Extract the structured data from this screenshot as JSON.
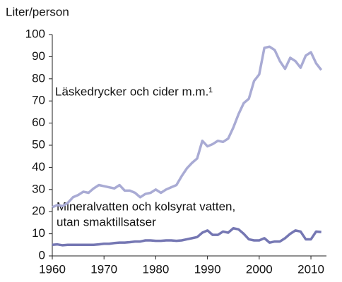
{
  "chart_data": {
    "type": "line",
    "ylabel": "Liter/person",
    "x": [
      1960,
      1961,
      1962,
      1963,
      1964,
      1965,
      1966,
      1967,
      1968,
      1969,
      1970,
      1971,
      1972,
      1973,
      1974,
      1975,
      1976,
      1977,
      1978,
      1979,
      1980,
      1981,
      1982,
      1983,
      1984,
      1985,
      1986,
      1987,
      1988,
      1989,
      1990,
      1991,
      1992,
      1993,
      1994,
      1995,
      1996,
      1997,
      1998,
      1999,
      2000,
      2001,
      2002,
      2003,
      2004,
      2005,
      2006,
      2007,
      2008,
      2009,
      2010,
      2011,
      2012
    ],
    "series": [
      {
        "name": "Läskedrycker och cider m.m.¹",
        "color": "#a9abd4",
        "values": [
          22,
          23,
          22.5,
          24,
          26.5,
          27.5,
          29,
          28.5,
          30.5,
          32,
          31.5,
          31,
          30.5,
          32,
          29.5,
          29.5,
          28.5,
          26.5,
          28,
          28.5,
          30,
          28.5,
          30,
          31,
          32,
          36,
          39.5,
          42,
          44,
          52,
          49.5,
          50.5,
          52,
          51.5,
          53,
          58,
          64,
          69,
          71,
          79,
          82,
          94,
          94.5,
          93,
          88,
          84.5,
          89.5,
          88,
          85,
          90.5,
          92,
          87,
          84
        ]
      },
      {
        "name": "Mineralvatten och kolsyrat vatten, utan smaktillsatser",
        "color": "#7577b3",
        "values": [
          5,
          5.2,
          4.8,
          5,
          5,
          5,
          5,
          5,
          5,
          5.2,
          5.5,
          5.5,
          5.8,
          6,
          6,
          6.2,
          6.5,
          6.5,
          7,
          7,
          6.8,
          6.8,
          7,
          7,
          6.8,
          7,
          7.5,
          8,
          8.5,
          10.5,
          11.5,
          9.5,
          9.5,
          11,
          10.5,
          12.5,
          12,
          10,
          7.5,
          7,
          7,
          8,
          6,
          6.5,
          6.5,
          8,
          10,
          11.5,
          11,
          7.5,
          7.5,
          11,
          10.8
        ]
      }
    ],
    "annotations": [
      "Läskedrycker och cider m.m.¹",
      "Mineralvatten och kolsyrat vatten,",
      "utan smaktillsatser"
    ],
    "xlim": [
      1960,
      2013
    ],
    "xticks": [
      1960,
      1970,
      1980,
      1990,
      2000,
      2010
    ],
    "ylim": [
      0,
      100
    ],
    "yticks": [
      0,
      10,
      20,
      30,
      40,
      50,
      60,
      70,
      80,
      90,
      100
    ],
    "grid": false
  }
}
